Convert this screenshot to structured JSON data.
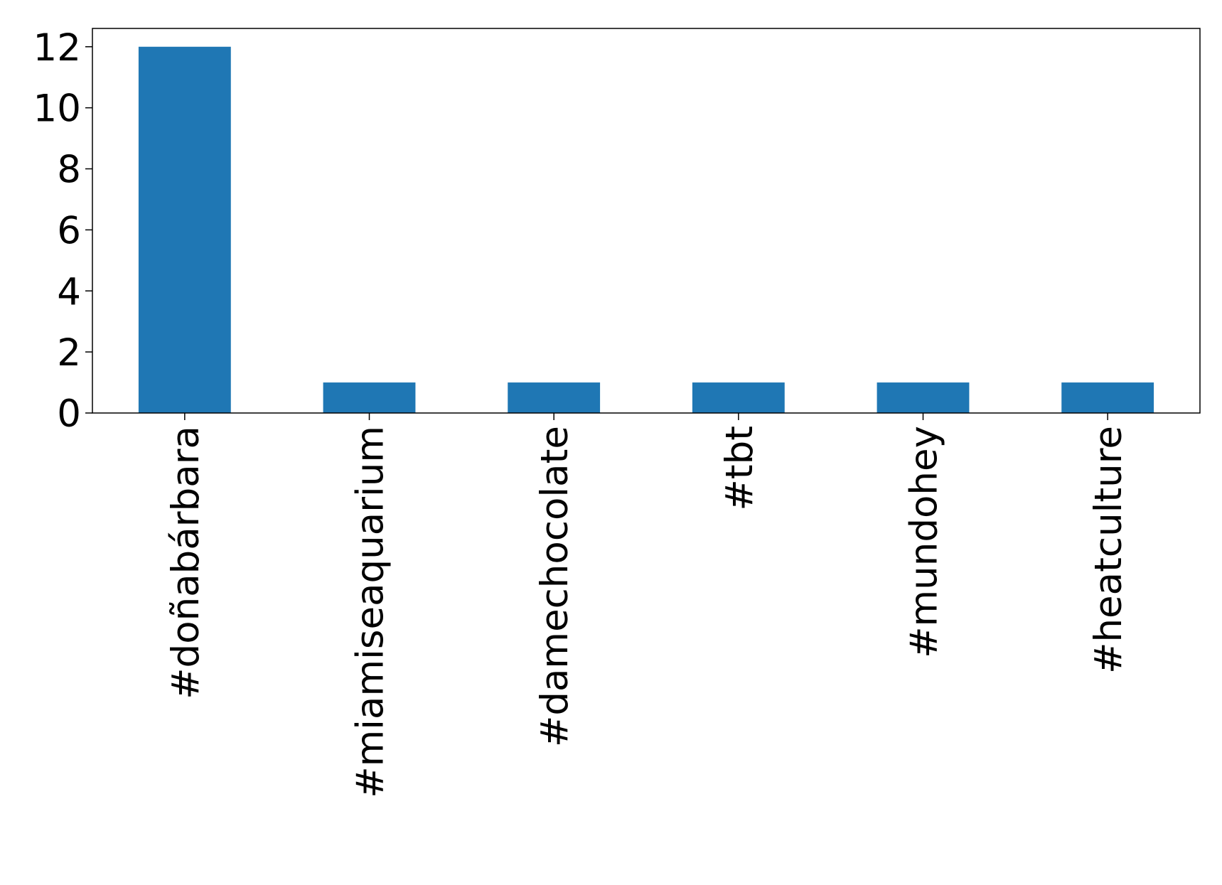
{
  "chart_data": {
    "type": "bar",
    "categories": [
      "#doñabárbara",
      "#miamiseaquarium",
      "#damechocolate",
      "#tbt",
      "#mundohey",
      "#heatculture"
    ],
    "values": [
      12,
      1,
      1,
      1,
      1,
      1
    ],
    "color": "#1f77b4",
    "ylim": [
      0,
      12.6
    ],
    "yticks": [
      0,
      2,
      4,
      6,
      8,
      10,
      12
    ],
    "grid": false
  }
}
